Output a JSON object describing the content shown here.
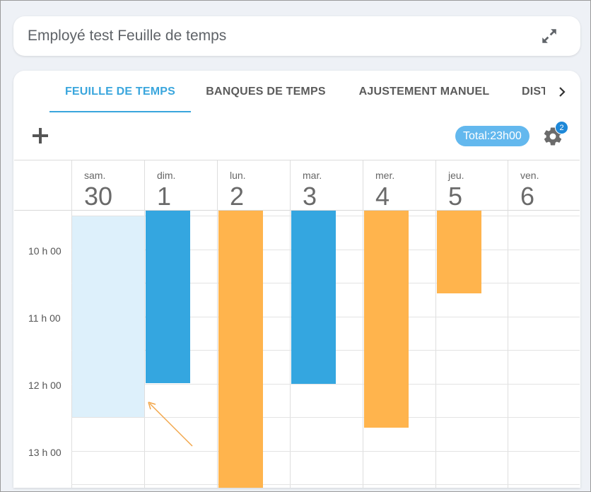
{
  "header": {
    "title": "Employé test Feuille de temps",
    "expand_icon": "expand-icon"
  },
  "tabs": [
    {
      "label": "FEUILLE DE TEMPS",
      "active": true
    },
    {
      "label": "BANQUES DE TEMPS",
      "active": false
    },
    {
      "label": "AJUSTEMENT MANUEL",
      "active": false
    },
    {
      "label": "DISTRIBUTION",
      "active": false
    }
  ],
  "toolbar": {
    "add_icon": "plus-icon",
    "total": "Total:23h00",
    "settings_icon": "gear-icon",
    "badge_count": "2"
  },
  "calendar": {
    "days": [
      {
        "name": "sam.",
        "number": "30"
      },
      {
        "name": "dim.",
        "number": "1"
      },
      {
        "name": "lun.",
        "number": "2"
      },
      {
        "name": "mar.",
        "number": "3"
      },
      {
        "name": "mer.",
        "number": "4"
      },
      {
        "name": "jeu.",
        "number": "5"
      },
      {
        "name": "ven.",
        "number": "6"
      }
    ],
    "time_labels": [
      "10 h 00",
      "11 h 00",
      "12 h 00",
      "13 h 00"
    ],
    "colors": {
      "worked": "#34a6e0",
      "other": "#ffb44d",
      "selection": "#ddf0fb",
      "accent": "#3aa6dd"
    }
  }
}
